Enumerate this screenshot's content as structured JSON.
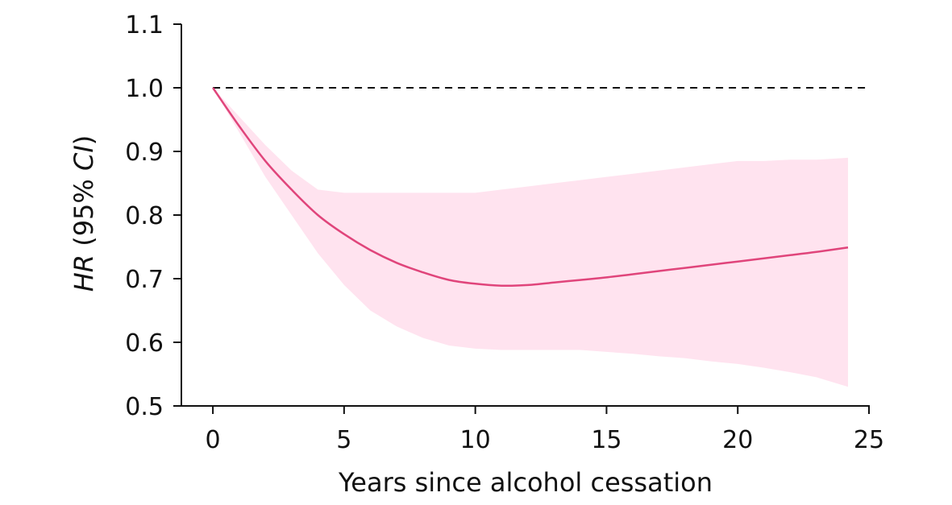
{
  "chart_data": {
    "type": "line",
    "title": "",
    "xlabel": "Years since alcohol cessation",
    "ylabel": {
      "italic_1": "HR",
      "plain_1": " (95% ",
      "italic_2": "CI",
      "plain_2": ")"
    },
    "xlim": [
      -1.2,
      25
    ],
    "ylim": [
      0.5,
      1.1
    ],
    "xticks": [
      "0",
      "5",
      "10",
      "15",
      "20",
      "25"
    ],
    "yticks": [
      "0.5",
      "0.6",
      "0.7",
      "0.8",
      "0.9",
      "1.0",
      "1.1"
    ],
    "reference_line": {
      "y": 1.0,
      "style": "dashed"
    },
    "grid": false,
    "legend": "none",
    "colors": {
      "line": "#e0457b",
      "ci_band": "#ffe3ef",
      "reference": "#111111",
      "axis": "#111111"
    },
    "series": [
      {
        "x": [
          0,
          1,
          2,
          3,
          4,
          5,
          6,
          7,
          8,
          9,
          10,
          11,
          12,
          13,
          14,
          15,
          16,
          17,
          18,
          19,
          20,
          21,
          22,
          23,
          24.2
        ],
        "values": [
          1.0,
          0.94,
          0.885,
          0.84,
          0.8,
          0.77,
          0.745,
          0.725,
          0.71,
          0.698,
          0.692,
          0.689,
          0.69,
          0.694,
          0.698,
          0.702,
          0.707,
          0.712,
          0.717,
          0.722,
          0.727,
          0.732,
          0.737,
          0.742,
          0.749
        ],
        "lower": [
          1.0,
          0.93,
          0.86,
          0.8,
          0.74,
          0.69,
          0.65,
          0.625,
          0.607,
          0.595,
          0.59,
          0.588,
          0.588,
          0.588,
          0.588,
          0.585,
          0.582,
          0.578,
          0.575,
          0.57,
          0.566,
          0.56,
          0.553,
          0.545,
          0.53
        ],
        "upper": [
          1.0,
          0.955,
          0.91,
          0.87,
          0.84,
          0.835,
          0.835,
          0.835,
          0.835,
          0.835,
          0.835,
          0.84,
          0.845,
          0.85,
          0.855,
          0.86,
          0.865,
          0.87,
          0.875,
          0.88,
          0.885,
          0.885,
          0.887,
          0.887,
          0.89
        ]
      }
    ]
  }
}
